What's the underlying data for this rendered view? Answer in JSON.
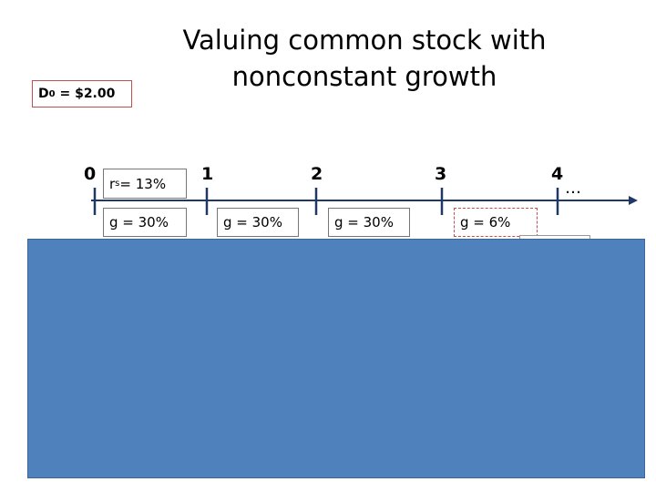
{
  "title": [
    "Valuing common stock with",
    "nonconstant growth"
  ],
  "d0": {
    "symbol": "D",
    "subscript": "0",
    "text": "= $2.00"
  },
  "timeline": [
    0,
    1,
    2,
    3,
    4
  ],
  "ellipsis": "…",
  "rs": {
    "symbol": "r",
    "subscript": "s",
    "text": "= 13%"
  },
  "growth": [
    "g = 30%",
    "g = 30%",
    "g = 30%",
    "g = 6%"
  ]
}
